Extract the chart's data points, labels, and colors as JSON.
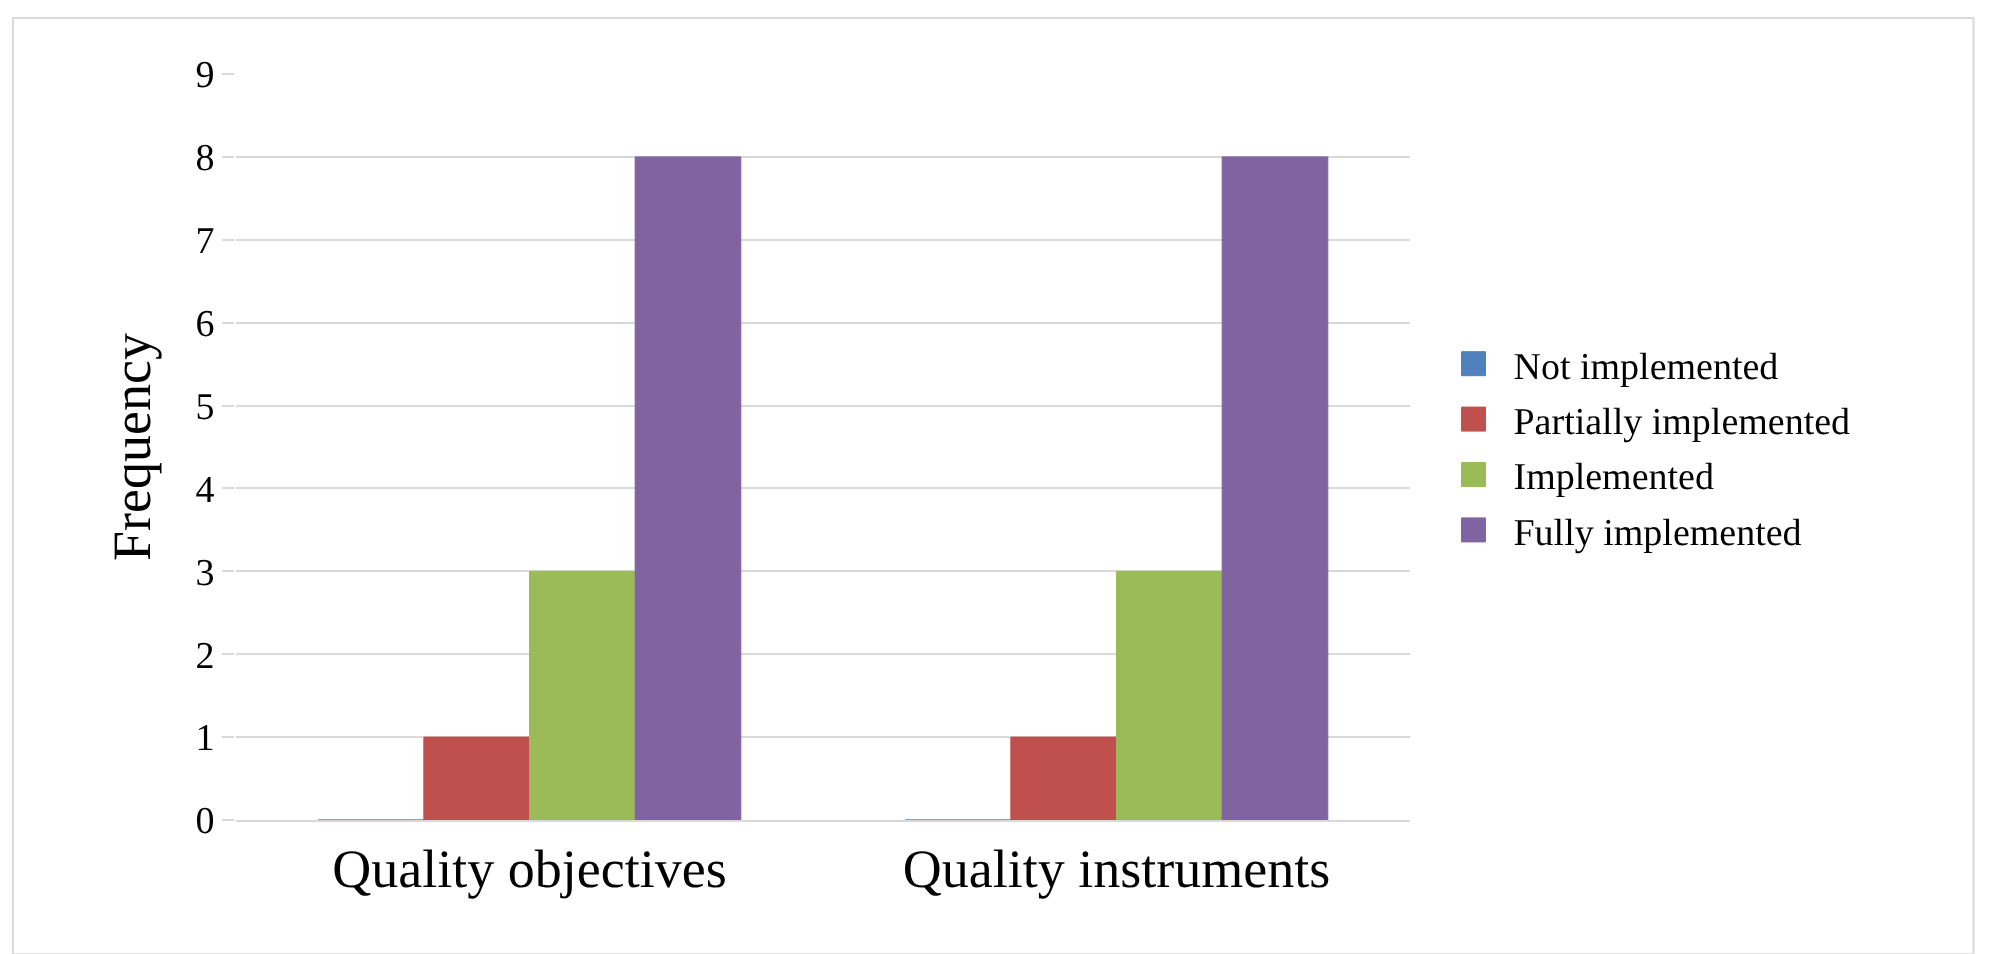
{
  "chart_data": {
    "type": "bar",
    "ylabel": "Frequency",
    "categories": [
      "Quality objectives",
      "Quality instruments"
    ],
    "series": [
      {
        "name": "Not implemented",
        "color": "#4f81bd",
        "values": [
          0,
          0
        ]
      },
      {
        "name": "Partially implemented",
        "color": "#c0504d",
        "values": [
          1,
          1
        ]
      },
      {
        "name": "Implemented",
        "color": "#9bbb59",
        "values": [
          3,
          3
        ]
      },
      {
        "name": "Fully implemented",
        "color": "#8064a2",
        "values": [
          8,
          8
        ]
      }
    ],
    "ylim": [
      0,
      9
    ],
    "yticks": [
      0,
      1,
      2,
      3,
      4,
      5,
      6,
      7,
      8,
      9
    ],
    "grid": "y",
    "legend": "right"
  }
}
